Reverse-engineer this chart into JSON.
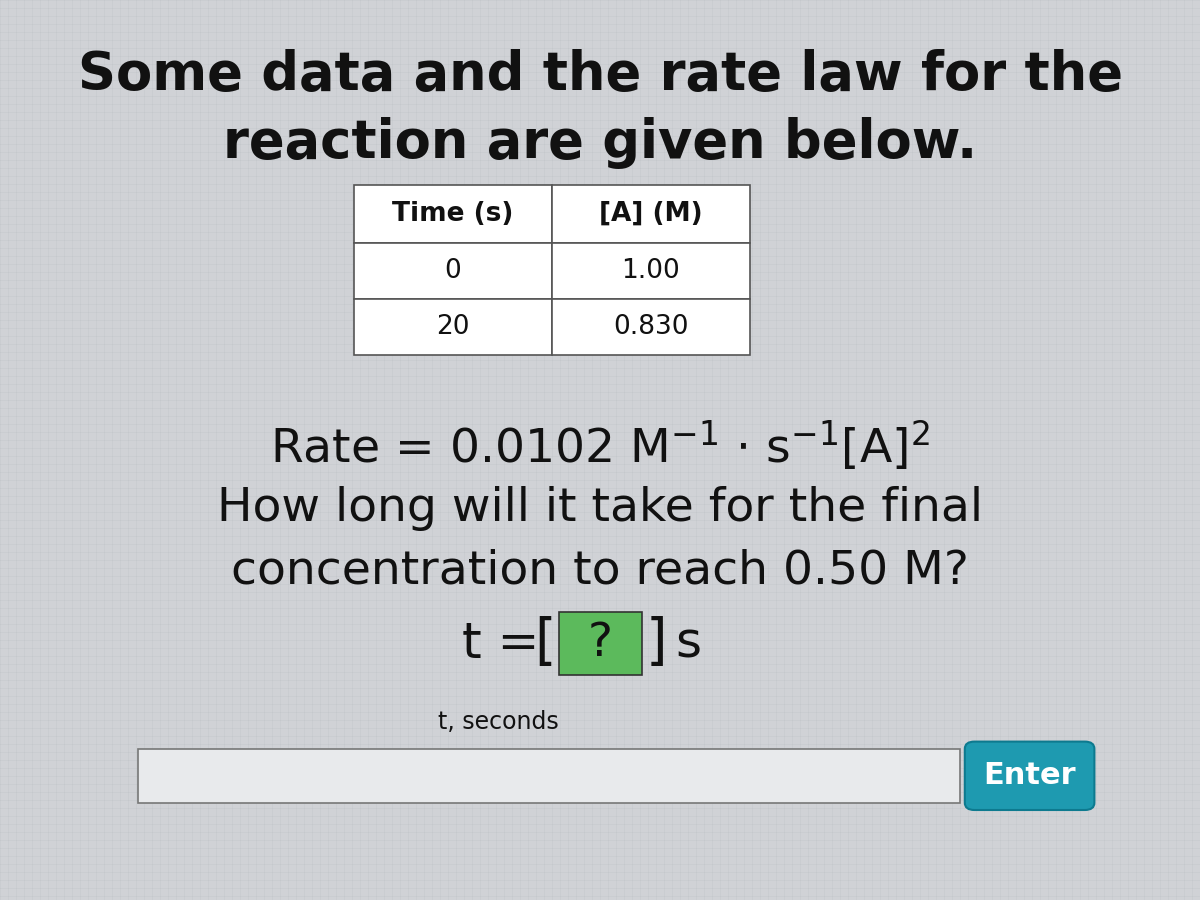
{
  "bg_color": "#d0d4d8",
  "title_line1": "Some data and the rate law for the",
  "title_line2": "reaction are given below.",
  "title_fontsize": 38,
  "table_headers": [
    "Time (s)",
    "[A] (M)"
  ],
  "table_rows": [
    [
      "0",
      "1.00"
    ],
    [
      "20",
      "0.830"
    ]
  ],
  "rate_law_fontsize": 34,
  "question_line1": "How long will it take for the final",
  "question_line2": "concentration to reach 0.50 M?",
  "question_fontsize": 34,
  "answer_fontsize": 36,
  "input_label": "t, seconds",
  "input_label_fontsize": 17,
  "enter_btn_color": "#1e9ab0",
  "enter_btn_text": "Enter",
  "enter_btn_fontsize": 22,
  "text_color": "#111111",
  "table_border_color": "#555555",
  "green_box_color": "#5cba5c",
  "input_box_color": "#e8eaec"
}
